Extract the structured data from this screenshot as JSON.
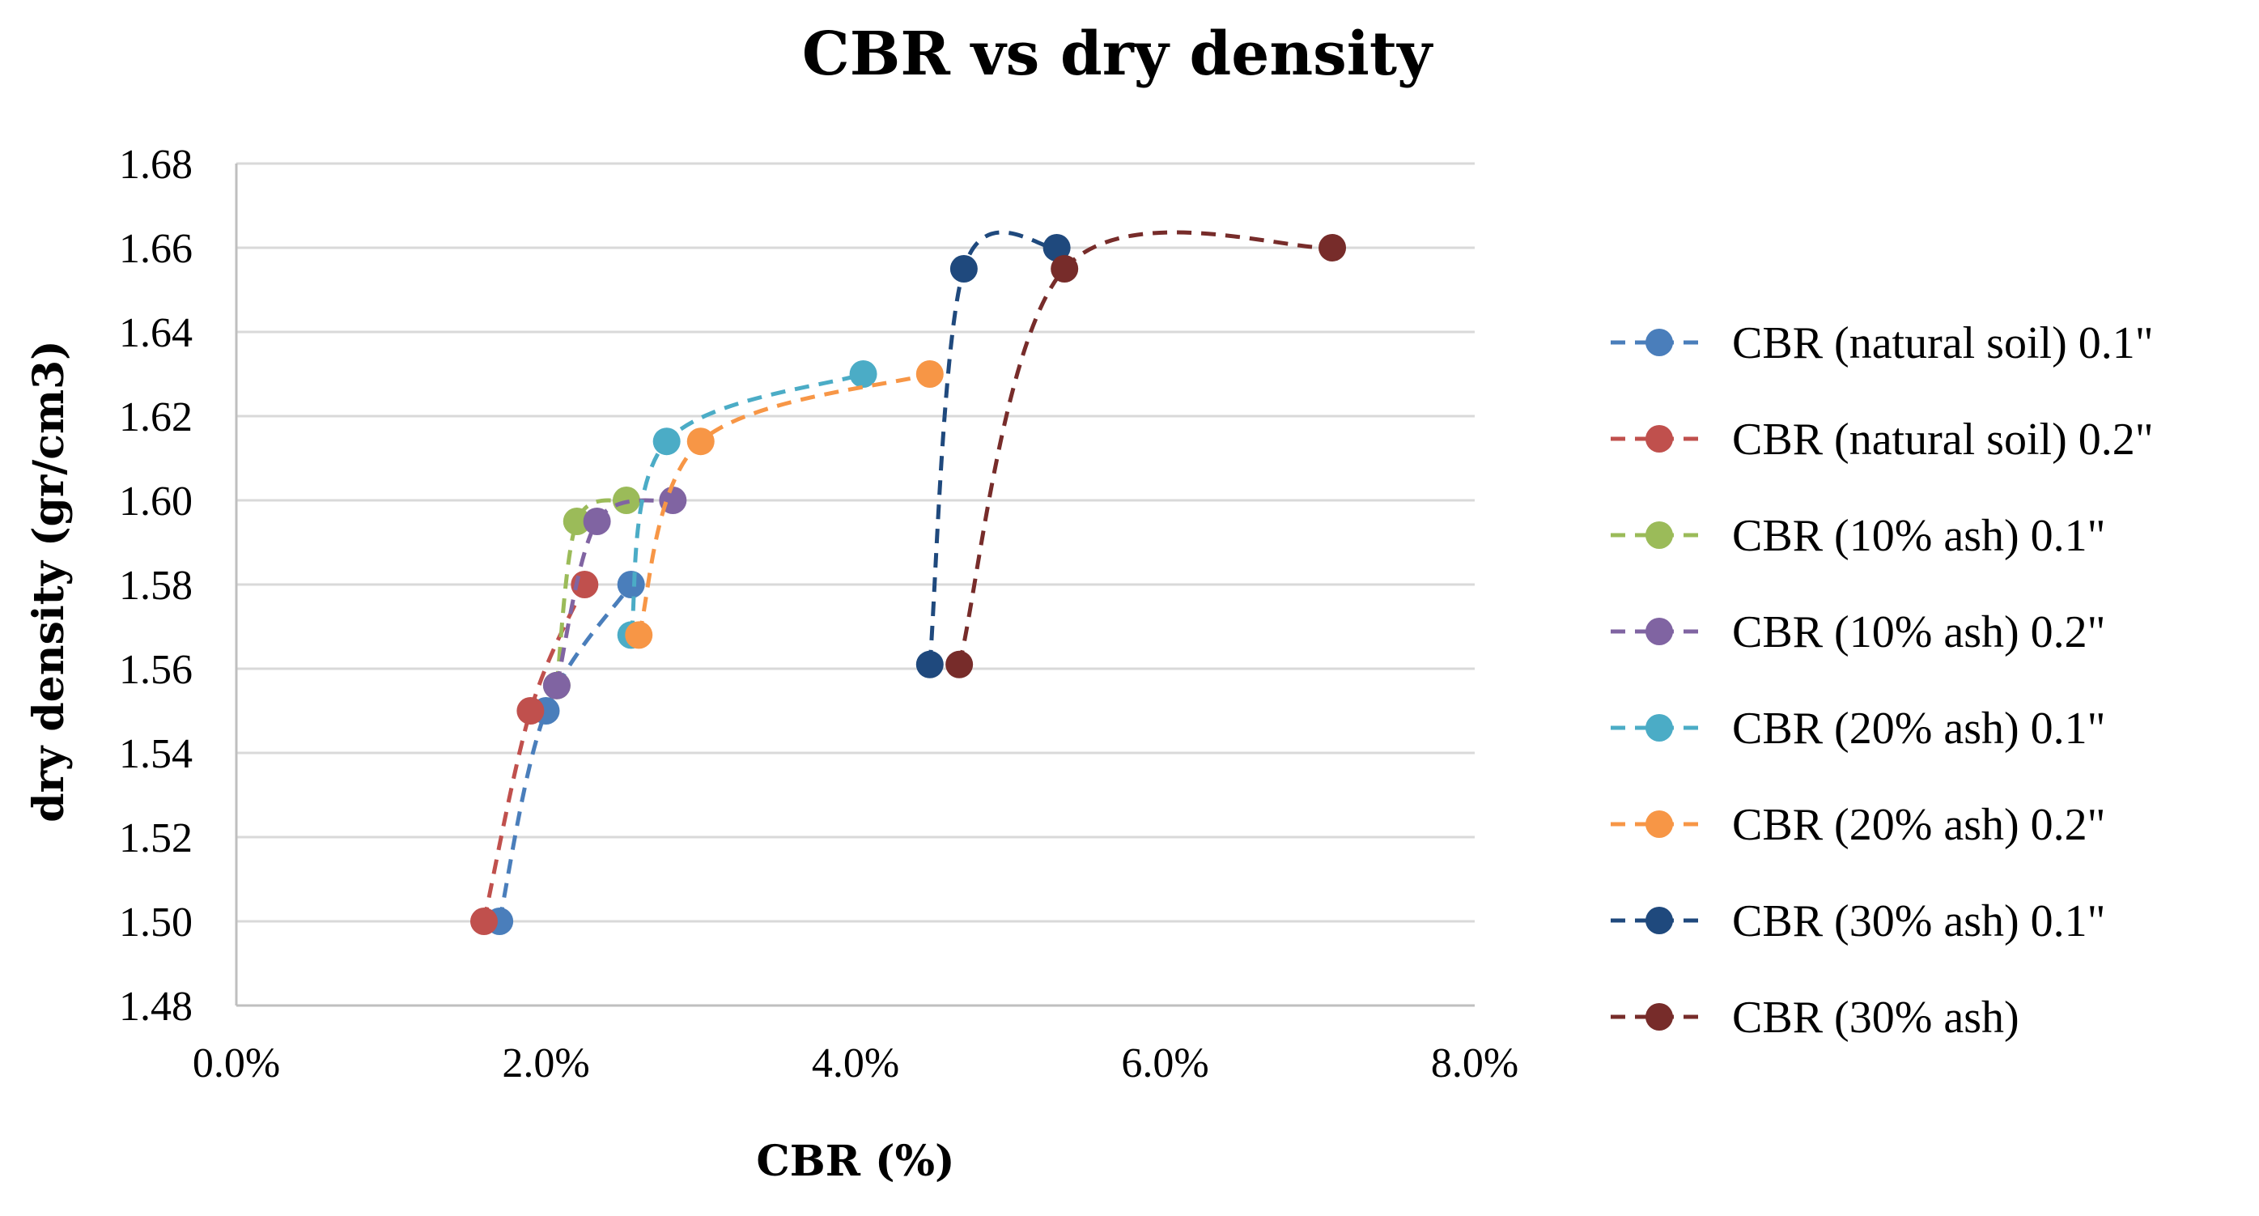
{
  "chart_data": {
    "type": "scatter",
    "title": "CBR vs dry density",
    "xlabel": "CBR (%)",
    "ylabel": "dry density (gr/cm3)",
    "xlim": [
      0.0,
      8.0
    ],
    "ylim": [
      1.48,
      1.68
    ],
    "x_ticks": [
      0,
      2,
      4,
      6,
      8
    ],
    "x_tick_labels": [
      "0.0%",
      "2.0%",
      "4.0%",
      "6.0%",
      "8.0%"
    ],
    "y_ticks": [
      1.48,
      1.5,
      1.52,
      1.54,
      1.56,
      1.58,
      1.6,
      1.62,
      1.64,
      1.66,
      1.68
    ],
    "y_tick_labels": [
      "1.48",
      "1.50",
      "1.52",
      "1.54",
      "1.56",
      "1.58",
      "1.60",
      "1.62",
      "1.64",
      "1.66",
      "1.68"
    ],
    "grid": true,
    "legend_position": "right",
    "line_style": "dashed smoothed",
    "series": [
      {
        "name": "CBR (natural soil) 0.1\"",
        "color": "#4a7ebb",
        "points": [
          [
            1.7,
            1.5
          ],
          [
            2.0,
            1.55
          ],
          [
            2.55,
            1.58
          ]
        ]
      },
      {
        "name": "CBR (natural soil) 0.2\"",
        "color": "#c0504d",
        "points": [
          [
            1.6,
            1.5
          ],
          [
            1.9,
            1.55
          ],
          [
            2.25,
            1.58
          ]
        ]
      },
      {
        "name": "CBR (10% ash) 0.1\"",
        "color": "#9bbb59",
        "points": [
          [
            2.07,
            1.556
          ],
          [
            2.2,
            1.595
          ],
          [
            2.52,
            1.6
          ]
        ]
      },
      {
        "name": "CBR (10% ash) 0.2\"",
        "color": "#8064a2",
        "points": [
          [
            2.07,
            1.556
          ],
          [
            2.33,
            1.595
          ],
          [
            2.82,
            1.6
          ]
        ]
      },
      {
        "name": "CBR (20% ash) 0.1\"",
        "color": "#4bacc6",
        "points": [
          [
            2.55,
            1.568
          ],
          [
            2.78,
            1.614
          ],
          [
            4.05,
            1.63
          ]
        ]
      },
      {
        "name": "CBR (20% ash) 0.2\"",
        "color": "#f79646",
        "points": [
          [
            2.6,
            1.568
          ],
          [
            3.0,
            1.614
          ],
          [
            4.48,
            1.63
          ]
        ]
      },
      {
        "name": "CBR (30% ash) 0.1\"",
        "color": "#1f497d",
        "points": [
          [
            4.48,
            1.561
          ],
          [
            4.7,
            1.655
          ],
          [
            5.3,
            1.66
          ]
        ]
      },
      {
        "name": "CBR (30% ash)",
        "color": "#772c2a",
        "points": [
          [
            4.67,
            1.561
          ],
          [
            5.35,
            1.655
          ],
          [
            7.08,
            1.66
          ]
        ]
      }
    ]
  }
}
